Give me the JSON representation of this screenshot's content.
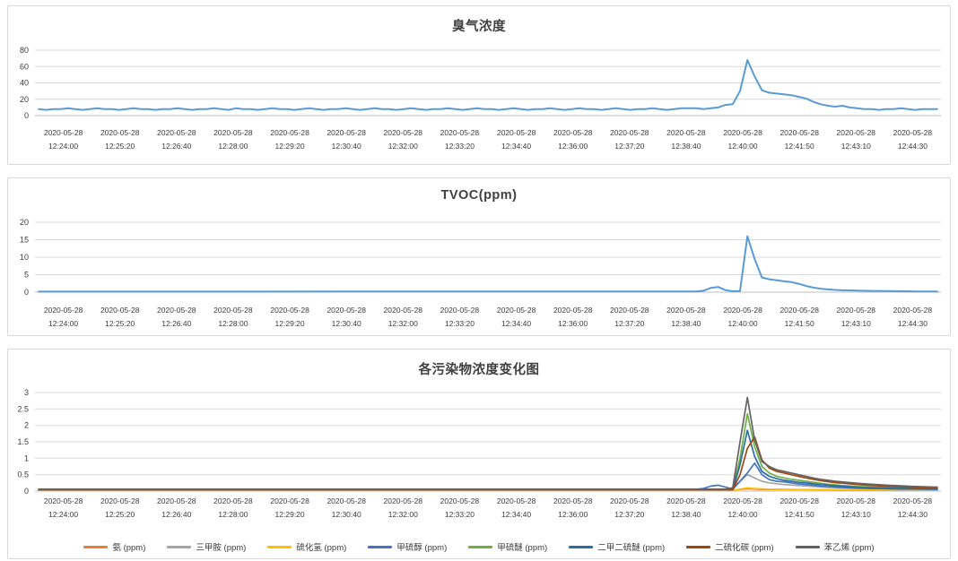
{
  "page": {
    "background": "#FFFFFF",
    "panel_border": "#D8D8D8",
    "gridline_color": "#D9D9D9",
    "axis_line_color": "#BFBFBF",
    "primary_line_color": "#5B9BD5"
  },
  "charts": [
    {
      "title": "臭气浓度",
      "type": "line",
      "y_axis": {
        "ticks": [
          "0",
          "20",
          "40",
          "60",
          "80"
        ],
        "max": 80
      },
      "x_axis": {
        "date": "2020-05-28",
        "tick_times": [
          "12:24:00",
          "12:25:20",
          "12:26:40",
          "12:28:00",
          "12:29:20",
          "12:30:40",
          "12:32:00",
          "12:33:20",
          "12:34:40",
          "12:36:00",
          "12:37:20",
          "12:38:40",
          "12:40:00",
          "12:41:50",
          "12:43:10",
          "12:44:30"
        ]
      },
      "series": [
        {
          "name": "臭气浓度",
          "color": "#5B9BD5",
          "values": [
            8,
            7,
            8,
            8,
            9,
            8,
            7,
            8,
            9,
            8,
            8,
            7,
            8,
            9,
            8,
            8,
            7,
            8,
            8,
            9,
            8,
            7,
            8,
            8,
            9,
            8,
            7,
            9,
            8,
            8,
            7,
            8,
            9,
            8,
            8,
            7,
            8,
            9,
            8,
            7,
            8,
            8,
            9,
            8,
            7,
            8,
            9,
            8,
            8,
            7,
            8,
            9,
            8,
            7,
            8,
            8,
            9,
            8,
            7,
            8,
            9,
            8,
            8,
            7,
            8,
            9,
            8,
            7,
            8,
            8,
            9,
            8,
            7,
            8,
            9,
            8,
            8,
            7,
            8,
            9,
            8,
            7,
            8,
            8,
            9,
            8,
            7,
            8,
            9,
            9,
            9,
            8,
            9,
            10,
            13,
            14,
            30,
            68,
            48,
            31,
            28,
            27,
            26,
            25,
            23,
            21,
            17,
            14,
            12,
            11,
            12,
            10,
            9,
            8,
            8,
            7,
            8,
            8,
            9,
            8,
            7,
            8,
            8,
            8
          ]
        }
      ]
    },
    {
      "title": "TVOC(ppm)",
      "type": "line",
      "y_axis": {
        "ticks": [
          "0",
          "5",
          "10",
          "15",
          "20"
        ],
        "max": 20
      },
      "x_axis": {
        "date": "2020-05-28",
        "tick_times": [
          "12:24:00",
          "12:25:20",
          "12:26:40",
          "12:28:00",
          "12:29:20",
          "12:30:40",
          "12:32:00",
          "12:33:20",
          "12:34:40",
          "12:36:00",
          "12:37:20",
          "12:38:40",
          "12:40:00",
          "12:41:50",
          "12:43:10",
          "12:44:30"
        ]
      },
      "series": [
        {
          "name": "TVOC(ppm)",
          "color": "#5B9BD5",
          "anchors": [
            [
              0,
              0.15
            ],
            [
              90,
              0.2
            ],
            [
              91,
              0.4
            ],
            [
              92,
              1.2
            ],
            [
              93,
              1.5
            ],
            [
              94,
              0.6
            ],
            [
              95,
              0.25
            ],
            [
              96,
              0.3
            ],
            [
              97,
              16
            ],
            [
              98,
              9.5
            ],
            [
              99,
              4.2
            ],
            [
              100,
              3.7
            ],
            [
              101,
              3.4
            ],
            [
              102,
              3.1
            ],
            [
              103,
              2.9
            ],
            [
              104,
              2.4
            ],
            [
              105,
              1.8
            ],
            [
              106,
              1.3
            ],
            [
              107,
              1.0
            ],
            [
              108,
              0.8
            ],
            [
              109,
              0.65
            ],
            [
              110,
              0.55
            ],
            [
              112,
              0.45
            ],
            [
              114,
              0.35
            ],
            [
              116,
              0.3
            ],
            [
              118,
              0.25
            ],
            [
              120,
              0.2
            ],
            [
              123,
              0.2
            ]
          ]
        }
      ]
    },
    {
      "title": "各污染物浓度变化图",
      "type": "line",
      "y_axis": {
        "ticks": [
          "0",
          "0.5",
          "1",
          "1.5",
          "2",
          "2.5",
          "3"
        ],
        "max": 3
      },
      "x_axis": {
        "date": "2020-05-28",
        "tick_times": [
          "12:24:00",
          "12:25:20",
          "12:26:40",
          "12:28:00",
          "12:29:20",
          "12:30:40",
          "12:32:00",
          "12:33:20",
          "12:34:40",
          "12:36:00",
          "12:37:20",
          "12:38:40",
          "12:40:00",
          "12:41:50",
          "12:43:10",
          "12:44:30"
        ]
      },
      "series": [
        {
          "name": "氨 (ppm)",
          "color": "#ED7D31",
          "anchors": [
            [
              0,
              0.03
            ],
            [
              95,
              0.03
            ],
            [
              97,
              0.07
            ],
            [
              99,
              0.05
            ],
            [
              110,
              0.04
            ],
            [
              123,
              0.03
            ]
          ]
        },
        {
          "name": "三甲胺 (ppm)",
          "color": "#A5A5A5",
          "anchors": [
            [
              0,
              0.04
            ],
            [
              95,
              0.05
            ],
            [
              96,
              0.3
            ],
            [
              97,
              0.5
            ],
            [
              98,
              0.4
            ],
            [
              99,
              0.3
            ],
            [
              100,
              0.25
            ],
            [
              102,
              0.2
            ],
            [
              104,
              0.17
            ],
            [
              106,
              0.14
            ],
            [
              108,
              0.12
            ],
            [
              110,
              0.1
            ],
            [
              114,
              0.08
            ],
            [
              118,
              0.06
            ],
            [
              123,
              0.05
            ]
          ]
        },
        {
          "name": "硫化氢 (ppm)",
          "color": "#FFC000",
          "anchors": [
            [
              0,
              0.02
            ],
            [
              95,
              0.02
            ],
            [
              97,
              0.1
            ],
            [
              98,
              0.08
            ],
            [
              100,
              0.06
            ],
            [
              104,
              0.05
            ],
            [
              110,
              0.05
            ],
            [
              116,
              0.04
            ],
            [
              123,
              0.03
            ]
          ]
        },
        {
          "name": "甲硫醇 (ppm)",
          "color": "#4472C4",
          "anchors": [
            [
              0,
              0.05
            ],
            [
              90,
              0.06
            ],
            [
              91,
              0.08
            ],
            [
              92,
              0.15
            ],
            [
              93,
              0.18
            ],
            [
              94,
              0.12
            ],
            [
              95,
              0.06
            ],
            [
              96,
              0.3
            ],
            [
              97,
              0.55
            ],
            [
              98,
              0.85
            ],
            [
              99,
              0.5
            ],
            [
              100,
              0.35
            ],
            [
              101,
              0.3
            ],
            [
              102,
              0.28
            ],
            [
              103,
              0.25
            ],
            [
              104,
              0.22
            ],
            [
              105,
              0.2
            ],
            [
              106,
              0.18
            ],
            [
              107,
              0.15
            ],
            [
              108,
              0.13
            ],
            [
              109,
              0.12
            ],
            [
              110,
              0.11
            ],
            [
              112,
              0.09
            ],
            [
              114,
              0.08
            ],
            [
              116,
              0.07
            ],
            [
              118,
              0.06
            ],
            [
              120,
              0.06
            ],
            [
              123,
              0.05
            ]
          ]
        },
        {
          "name": "甲硫醚 (ppm)",
          "color": "#70AD47",
          "anchors": [
            [
              0,
              0.05
            ],
            [
              95,
              0.05
            ],
            [
              96,
              1.0
            ],
            [
              97,
              2.35
            ],
            [
              98,
              1.35
            ],
            [
              99,
              0.75
            ],
            [
              100,
              0.55
            ],
            [
              101,
              0.45
            ],
            [
              102,
              0.4
            ],
            [
              103,
              0.36
            ],
            [
              104,
              0.33
            ],
            [
              105,
              0.3
            ],
            [
              106,
              0.27
            ],
            [
              107,
              0.24
            ],
            [
              108,
              0.21
            ],
            [
              109,
              0.19
            ],
            [
              110,
              0.17
            ],
            [
              112,
              0.14
            ],
            [
              114,
              0.12
            ],
            [
              116,
              0.11
            ],
            [
              118,
              0.1
            ],
            [
              120,
              0.09
            ],
            [
              123,
              0.08
            ]
          ]
        },
        {
          "name": "二甲二硫醚 (ppm)",
          "color": "#2B6CA3",
          "anchors": [
            [
              0,
              0.04
            ],
            [
              95,
              0.04
            ],
            [
              96,
              0.8
            ],
            [
              97,
              1.85
            ],
            [
              98,
              1.05
            ],
            [
              99,
              0.6
            ],
            [
              100,
              0.45
            ],
            [
              101,
              0.38
            ],
            [
              102,
              0.33
            ],
            [
              103,
              0.3
            ],
            [
              104,
              0.27
            ],
            [
              105,
              0.25
            ],
            [
              106,
              0.22
            ],
            [
              107,
              0.2
            ],
            [
              108,
              0.18
            ],
            [
              109,
              0.16
            ],
            [
              110,
              0.15
            ],
            [
              112,
              0.12
            ],
            [
              114,
              0.1
            ],
            [
              116,
              0.09
            ],
            [
              118,
              0.08
            ],
            [
              120,
              0.07
            ],
            [
              123,
              0.07
            ]
          ]
        },
        {
          "name": "二硫化碳 (ppm)",
          "color": "#9E480E",
          "anchors": [
            [
              0,
              0.05
            ],
            [
              95,
              0.05
            ],
            [
              96,
              0.5
            ],
            [
              97,
              1.3
            ],
            [
              98,
              1.65
            ],
            [
              99,
              0.95
            ],
            [
              100,
              0.7
            ],
            [
              101,
              0.6
            ],
            [
              102,
              0.55
            ],
            [
              103,
              0.5
            ],
            [
              104,
              0.45
            ],
            [
              105,
              0.4
            ],
            [
              106,
              0.36
            ],
            [
              107,
              0.32
            ],
            [
              108,
              0.29
            ],
            [
              109,
              0.26
            ],
            [
              110,
              0.24
            ],
            [
              112,
              0.2
            ],
            [
              114,
              0.17
            ],
            [
              116,
              0.15
            ],
            [
              118,
              0.13
            ],
            [
              120,
              0.11
            ],
            [
              123,
              0.1
            ]
          ]
        },
        {
          "name": "苯乙烯 (ppm)",
          "color": "#636363",
          "anchors": [
            [
              0,
              0.06
            ],
            [
              94,
              0.06
            ],
            [
              95,
              0.1
            ],
            [
              96,
              1.5
            ],
            [
              97,
              2.85
            ],
            [
              98,
              1.55
            ],
            [
              99,
              0.9
            ],
            [
              100,
              0.75
            ],
            [
              101,
              0.65
            ],
            [
              102,
              0.6
            ],
            [
              103,
              0.55
            ],
            [
              104,
              0.5
            ],
            [
              105,
              0.45
            ],
            [
              106,
              0.4
            ],
            [
              107,
              0.36
            ],
            [
              108,
              0.33
            ],
            [
              109,
              0.3
            ],
            [
              110,
              0.28
            ],
            [
              112,
              0.24
            ],
            [
              114,
              0.21
            ],
            [
              116,
              0.18
            ],
            [
              118,
              0.16
            ],
            [
              120,
              0.14
            ],
            [
              123,
              0.12
            ]
          ]
        }
      ]
    }
  ]
}
